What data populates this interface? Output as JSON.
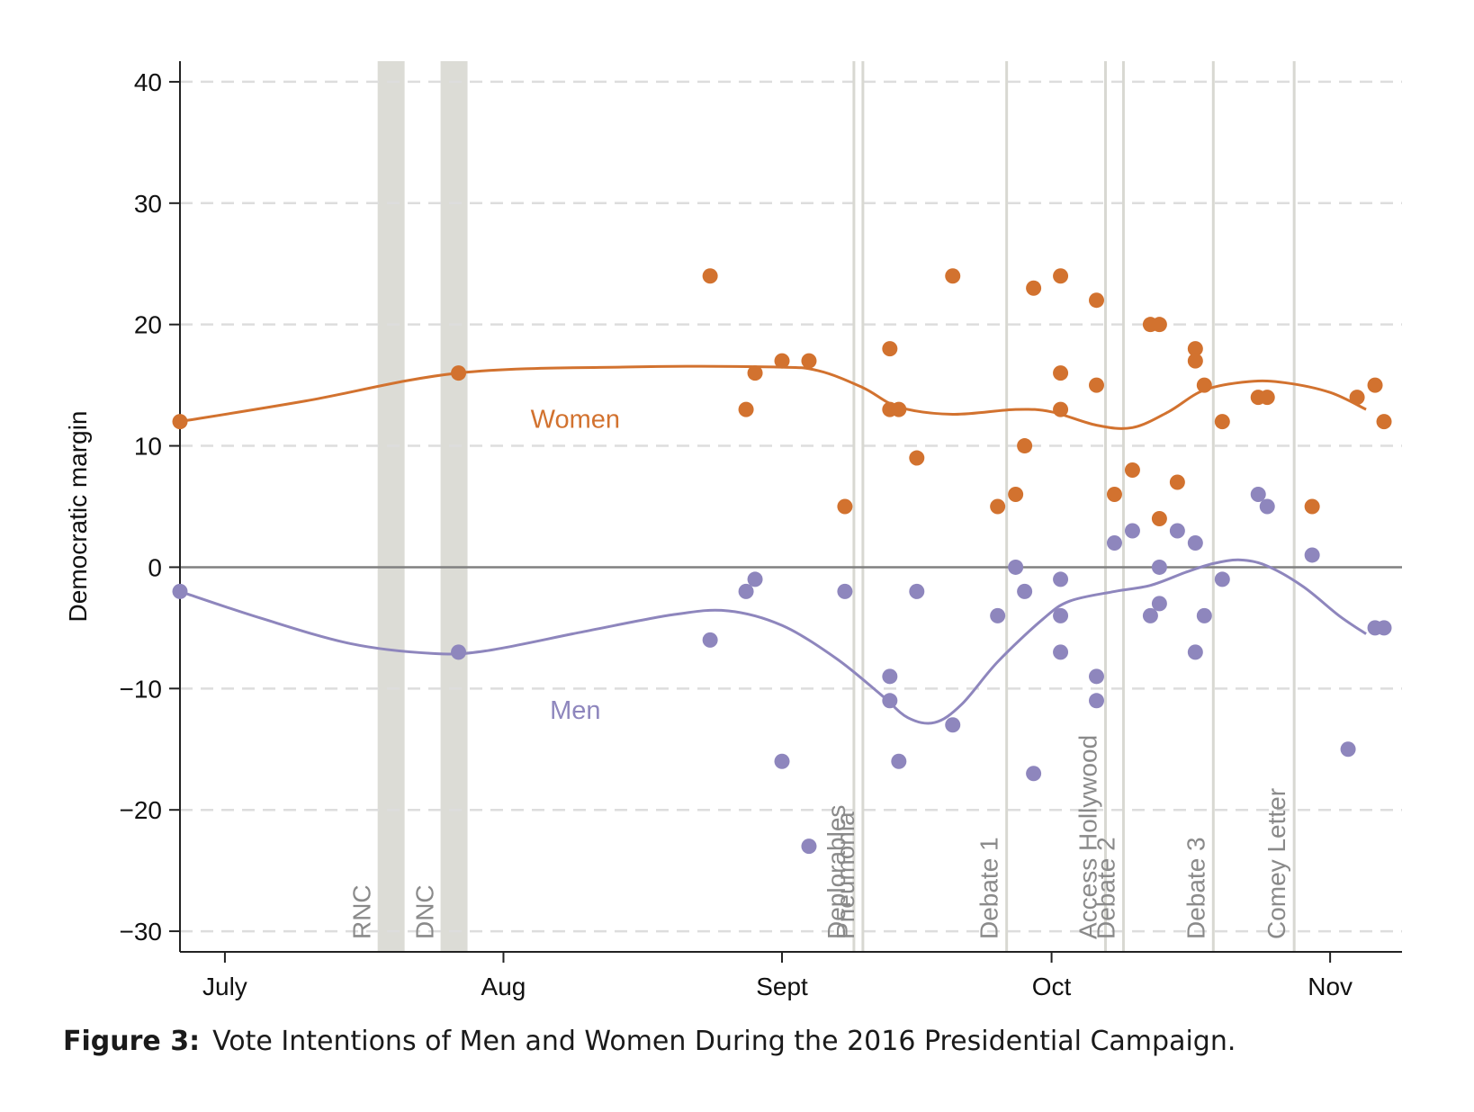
{
  "colors": {
    "women": "#d2722f",
    "men": "#8e86bd",
    "event_line": "#d8d8d2",
    "event_band": "#dcdcd6",
    "zero_line": "#808080",
    "grid": "#dddddd"
  },
  "caption": {
    "prefix": "Figure 3:",
    "text": "Vote Intentions of Men and Women During the 2016 Presidential Campaign."
  },
  "chart_data": {
    "type": "scatter",
    "title": "",
    "xlabel": "",
    "ylabel": "Democratic margin",
    "ylim": [
      -31.7,
      41.7
    ],
    "xlim": [
      "2016-06-26",
      "2016-11-09"
    ],
    "grid": true,
    "yticks": [
      {
        "value": 40,
        "label": "40"
      },
      {
        "value": 30,
        "label": "30"
      },
      {
        "value": 20,
        "label": "20"
      },
      {
        "value": 10,
        "label": "10"
      },
      {
        "value": 0,
        "label": "0"
      },
      {
        "value": -10,
        "label": "−10"
      },
      {
        "value": -20,
        "label": "−20"
      },
      {
        "value": -30,
        "label": "−30"
      }
    ],
    "xticks": [
      {
        "date": "2016-07-01",
        "label": "July"
      },
      {
        "date": "2016-08-01",
        "label": "Aug"
      },
      {
        "date": "2016-09-01",
        "label": "Sept"
      },
      {
        "date": "2016-10-01",
        "label": "Oct"
      },
      {
        "date": "2016-11-01",
        "label": "Nov"
      }
    ],
    "bands": [
      {
        "label": "RNC",
        "start": "2016-07-18",
        "end": "2016-07-21"
      },
      {
        "label": "DNC",
        "start": "2016-07-25",
        "end": "2016-07-28"
      }
    ],
    "events": [
      {
        "label": "Deplorables",
        "date": "2016-09-09"
      },
      {
        "label": "Pneumonia",
        "date": "2016-09-10"
      },
      {
        "label": "Debate 1",
        "date": "2016-09-26"
      },
      {
        "label": "Access Hollywood",
        "date": "2016-10-07"
      },
      {
        "label": "Debate 2",
        "date": "2016-10-09"
      },
      {
        "label": "Debate 3",
        "date": "2016-10-19"
      },
      {
        "label": "Comey Letter",
        "date": "2016-10-28"
      }
    ],
    "series": [
      {
        "name": "Women",
        "points": [
          [
            "2016-06-26",
            12
          ],
          [
            "2016-07-27",
            16
          ],
          [
            "2016-08-24",
            24
          ],
          [
            "2016-08-28",
            13
          ],
          [
            "2016-08-29",
            16
          ],
          [
            "2016-09-01",
            17
          ],
          [
            "2016-09-04",
            17
          ],
          [
            "2016-09-08",
            5
          ],
          [
            "2016-09-13",
            18
          ],
          [
            "2016-09-13",
            13
          ],
          [
            "2016-09-14",
            13
          ],
          [
            "2016-09-16",
            9
          ],
          [
            "2016-09-20",
            24
          ],
          [
            "2016-09-25",
            5
          ],
          [
            "2016-09-27",
            6
          ],
          [
            "2016-09-28",
            10
          ],
          [
            "2016-09-29",
            23
          ],
          [
            "2016-10-02",
            24
          ],
          [
            "2016-10-02",
            16
          ],
          [
            "2016-10-02",
            13
          ],
          [
            "2016-10-06",
            22
          ],
          [
            "2016-10-06",
            15
          ],
          [
            "2016-10-08",
            6
          ],
          [
            "2016-10-10",
            8
          ],
          [
            "2016-10-12",
            20
          ],
          [
            "2016-10-13",
            20
          ],
          [
            "2016-10-13",
            4
          ],
          [
            "2016-10-15",
            7
          ],
          [
            "2016-10-17",
            18
          ],
          [
            "2016-10-17",
            17
          ],
          [
            "2016-10-18",
            15
          ],
          [
            "2016-10-20",
            12
          ],
          [
            "2016-10-24",
            14
          ],
          [
            "2016-10-25",
            14
          ],
          [
            "2016-10-30",
            5
          ],
          [
            "2016-11-04",
            14
          ],
          [
            "2016-11-06",
            15
          ],
          [
            "2016-11-07",
            12
          ]
        ],
        "trend": [
          [
            "2016-06-26",
            12
          ],
          [
            "2016-07-10",
            13.7
          ],
          [
            "2016-07-27",
            16
          ],
          [
            "2016-08-15",
            16.5
          ],
          [
            "2016-08-31",
            16.5
          ],
          [
            "2016-09-05",
            16.2
          ],
          [
            "2016-09-10",
            14.8
          ],
          [
            "2016-09-14",
            13.2
          ],
          [
            "2016-09-20",
            12.6
          ],
          [
            "2016-09-27",
            13
          ],
          [
            "2016-10-01",
            12.8
          ],
          [
            "2016-10-06",
            11.7
          ],
          [
            "2016-10-10",
            11.5
          ],
          [
            "2016-10-14",
            12.8
          ],
          [
            "2016-10-18",
            14.6
          ],
          [
            "2016-10-23",
            15.3
          ],
          [
            "2016-10-27",
            15.2
          ],
          [
            "2016-11-01",
            14.4
          ],
          [
            "2016-11-05",
            13
          ]
        ]
      },
      {
        "name": "Men",
        "points": [
          [
            "2016-06-26",
            -2
          ],
          [
            "2016-07-27",
            -7
          ],
          [
            "2016-08-24",
            -6
          ],
          [
            "2016-08-28",
            -2
          ],
          [
            "2016-08-29",
            -1
          ],
          [
            "2016-09-01",
            -16
          ],
          [
            "2016-09-04",
            -23
          ],
          [
            "2016-09-08",
            -2
          ],
          [
            "2016-09-13",
            -9
          ],
          [
            "2016-09-13",
            -11
          ],
          [
            "2016-09-14",
            -16
          ],
          [
            "2016-09-16",
            -2
          ],
          [
            "2016-09-20",
            -13
          ],
          [
            "2016-09-25",
            -4
          ],
          [
            "2016-09-27",
            0
          ],
          [
            "2016-09-28",
            -2
          ],
          [
            "2016-09-29",
            -17
          ],
          [
            "2016-10-02",
            -1
          ],
          [
            "2016-10-02",
            -4
          ],
          [
            "2016-10-02",
            -7
          ],
          [
            "2016-10-06",
            -9
          ],
          [
            "2016-10-06",
            -11
          ],
          [
            "2016-10-08",
            2
          ],
          [
            "2016-10-10",
            3
          ],
          [
            "2016-10-12",
            -4
          ],
          [
            "2016-10-13",
            -3
          ],
          [
            "2016-10-13",
            0
          ],
          [
            "2016-10-15",
            3
          ],
          [
            "2016-10-17",
            2
          ],
          [
            "2016-10-17",
            -7
          ],
          [
            "2016-10-18",
            -4
          ],
          [
            "2016-10-20",
            -1
          ],
          [
            "2016-10-24",
            6
          ],
          [
            "2016-10-25",
            5
          ],
          [
            "2016-10-30",
            1
          ],
          [
            "2016-11-03",
            -15
          ],
          [
            "2016-11-06",
            -5
          ],
          [
            "2016-11-07",
            -5
          ]
        ],
        "trend": [
          [
            "2016-06-26",
            -2
          ],
          [
            "2016-07-05",
            -4.2
          ],
          [
            "2016-07-15",
            -6.3
          ],
          [
            "2016-07-24",
            -7.1
          ],
          [
            "2016-07-30",
            -6.9
          ],
          [
            "2016-08-10",
            -5.3
          ],
          [
            "2016-08-20",
            -3.9
          ],
          [
            "2016-08-26",
            -3.6
          ],
          [
            "2016-09-01",
            -4.8
          ],
          [
            "2016-09-07",
            -7.5
          ],
          [
            "2016-09-12",
            -10.5
          ],
          [
            "2016-09-15",
            -12.4
          ],
          [
            "2016-09-18",
            -12.8
          ],
          [
            "2016-09-21",
            -11.3
          ],
          [
            "2016-09-25",
            -7.8
          ],
          [
            "2016-09-30",
            -4.3
          ],
          [
            "2016-10-03",
            -2.8
          ],
          [
            "2016-10-08",
            -2
          ],
          [
            "2016-10-12",
            -1.5
          ],
          [
            "2016-10-16",
            -0.4
          ],
          [
            "2016-10-19",
            0.3
          ],
          [
            "2016-10-22",
            0.6
          ],
          [
            "2016-10-25",
            0.1
          ],
          [
            "2016-10-29",
            -1.6
          ],
          [
            "2016-11-02",
            -4
          ],
          [
            "2016-11-05",
            -5.5
          ]
        ]
      }
    ],
    "series_labels": [
      {
        "text": "Women",
        "date": "2016-08-09",
        "y": 11.5
      },
      {
        "text": "Men",
        "date": "2016-08-09",
        "y": -12.5
      }
    ]
  }
}
